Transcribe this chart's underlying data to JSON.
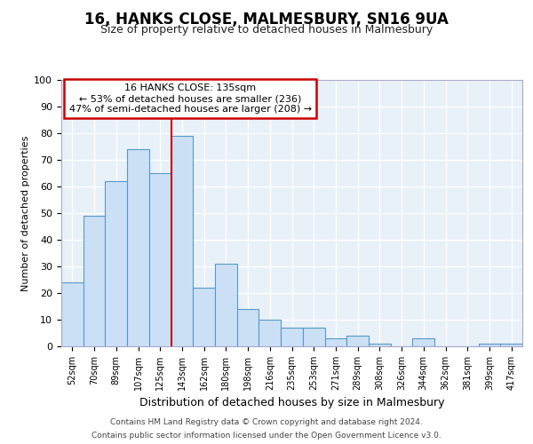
{
  "title": "16, HANKS CLOSE, MALMESBURY, SN16 9UA",
  "subtitle": "Size of property relative to detached houses in Malmesbury",
  "xlabel": "Distribution of detached houses by size in Malmesbury",
  "ylabel": "Number of detached properties",
  "footer_line1": "Contains HM Land Registry data © Crown copyright and database right 2024.",
  "footer_line2": "Contains public sector information licensed under the Open Government Licence v3.0.",
  "bin_labels": [
    "52sqm",
    "70sqm",
    "89sqm",
    "107sqm",
    "125sqm",
    "143sqm",
    "162sqm",
    "180sqm",
    "198sqm",
    "216sqm",
    "235sqm",
    "253sqm",
    "271sqm",
    "289sqm",
    "308sqm",
    "326sqm",
    "344sqm",
    "362sqm",
    "381sqm",
    "399sqm",
    "417sqm"
  ],
  "bar_values": [
    24,
    49,
    62,
    74,
    65,
    79,
    22,
    31,
    14,
    10,
    7,
    7,
    3,
    4,
    1,
    0,
    3,
    0,
    0,
    1,
    1
  ],
  "bar_color": "#cce0f5",
  "bar_edge_color": "#5599cc",
  "vline_x": 4.5,
  "annotation_title": "16 HANKS CLOSE: 135sqm",
  "annotation_line2": "← 53% of detached houses are smaller (236)",
  "annotation_line3": "47% of semi-detached houses are larger (208) →",
  "annotation_box_color": "#ffffff",
  "annotation_box_edge": "#cc0000",
  "vline_color": "#cc0000",
  "ylim": [
    0,
    100
  ],
  "background_color": "#e8f0f8",
  "grid_color": "#ffffff",
  "title_fontsize": 12,
  "subtitle_fontsize": 9,
  "ylabel_fontsize": 8,
  "xlabel_fontsize": 9,
  "tick_fontsize": 8,
  "xtick_fontsize": 7,
  "footer_fontsize": 6.5,
  "ann_fontsize": 8
}
